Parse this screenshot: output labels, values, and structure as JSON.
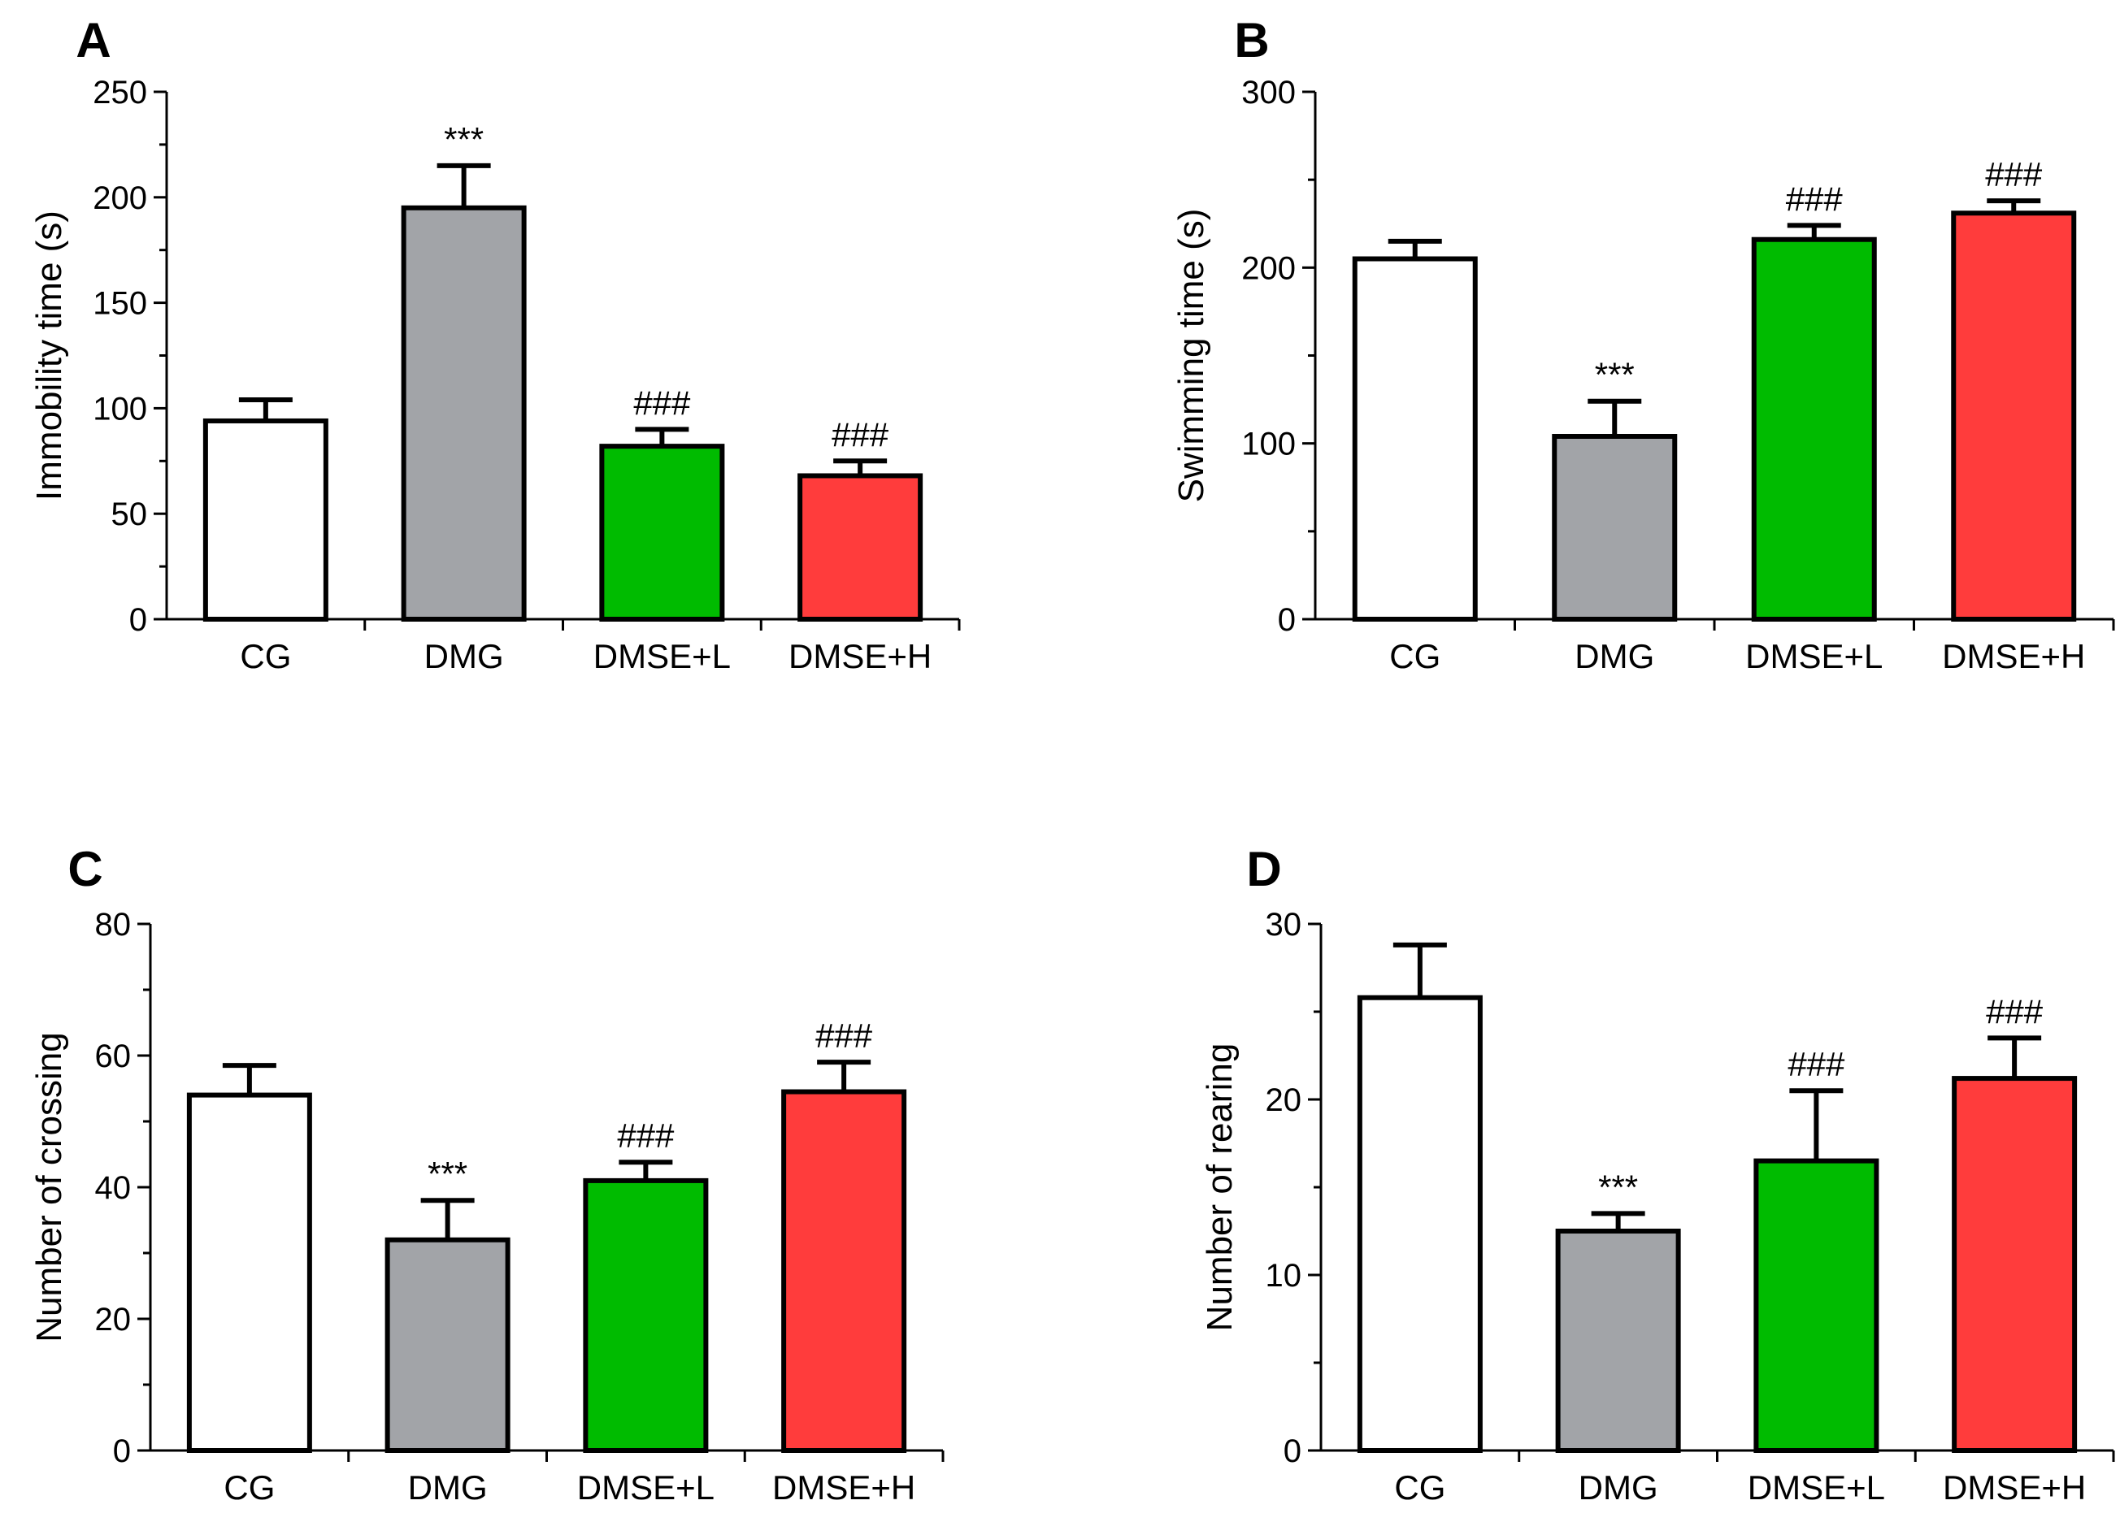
{
  "chart_data": [
    {
      "panel": "A",
      "type": "bar",
      "categories": [
        "CG",
        "DMG",
        "DMSE+L",
        "DMSE+H"
      ],
      "values": [
        94,
        195,
        82,
        68
      ],
      "errors": [
        10,
        20,
        8,
        7
      ],
      "annotations": [
        "",
        "***",
        "###",
        "###"
      ],
      "colors": [
        "#ffffff",
        "#a2a4a8",
        "#00bb00",
        "#ff3c3c"
      ],
      "ylabel": "Immobility time (s)",
      "ylim": [
        0,
        250
      ],
      "yticks": [
        0,
        50,
        100,
        150,
        200,
        250
      ]
    },
    {
      "panel": "B",
      "type": "bar",
      "categories": [
        "CG",
        "DMG",
        "DMSE+L",
        "DMSE+H"
      ],
      "values": [
        205,
        104,
        216,
        231
      ],
      "errors": [
        10,
        20,
        8,
        7
      ],
      "annotations": [
        "",
        "***",
        "###",
        "###"
      ],
      "colors": [
        "#ffffff",
        "#a2a4a8",
        "#00bb00",
        "#ff3c3c"
      ],
      "ylabel": "Swimming time (s)",
      "ylim": [
        0,
        300
      ],
      "yticks": [
        0,
        100,
        200,
        300
      ]
    },
    {
      "panel": "C",
      "type": "bar",
      "categories": [
        "CG",
        "DMG",
        "DMSE+L",
        "DMSE+H"
      ],
      "values": [
        54,
        32,
        41,
        54.5
      ],
      "errors": [
        4.5,
        6,
        2.8,
        4.5
      ],
      "annotations": [
        "",
        "***",
        "###",
        "###"
      ],
      "colors": [
        "#ffffff",
        "#a2a4a8",
        "#00bb00",
        "#ff3c3c"
      ],
      "ylabel": "Number of crossing",
      "ylim": [
        0,
        80
      ],
      "yticks": [
        0,
        20,
        40,
        60,
        80
      ]
    },
    {
      "panel": "D",
      "type": "bar",
      "categories": [
        "CG",
        "DMG",
        "DMSE+L",
        "DMSE+H"
      ],
      "values": [
        25.8,
        12.5,
        16.5,
        21.2
      ],
      "errors": [
        3,
        1,
        4,
        2.3
      ],
      "annotations": [
        "",
        "***",
        "###",
        "###"
      ],
      "colors": [
        "#ffffff",
        "#a2a4a8",
        "#00bb00",
        "#ff3c3c"
      ],
      "ylabel": "Number of rearing",
      "ylim": [
        0,
        30
      ],
      "yticks": [
        0,
        10,
        20,
        30
      ]
    }
  ]
}
